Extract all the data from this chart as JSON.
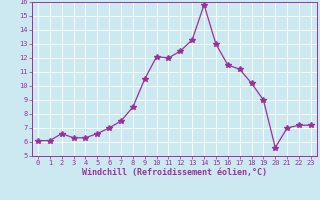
{
  "xlabel": "Windchill (Refroidissement éolien,°C)",
  "x": [
    0,
    1,
    2,
    3,
    4,
    5,
    6,
    7,
    8,
    9,
    10,
    11,
    12,
    13,
    14,
    15,
    16,
    17,
    18,
    19,
    20,
    21,
    22,
    23
  ],
  "y": [
    6.1,
    6.1,
    6.6,
    6.3,
    6.3,
    6.6,
    7.0,
    7.5,
    8.5,
    10.5,
    12.1,
    12.0,
    12.5,
    13.3,
    15.8,
    13.0,
    11.5,
    11.2,
    10.2,
    9.0,
    5.6,
    7.0,
    7.2,
    7.2
  ],
  "line_color": "#993399",
  "marker": "*",
  "marker_size": 4,
  "line_width": 0.9,
  "background_color": "#cce8f0",
  "grid_color": "#ffffff",
  "ylim": [
    5,
    16
  ],
  "xlim_min": -0.5,
  "xlim_max": 23.5,
  "yticks": [
    5,
    6,
    7,
    8,
    9,
    10,
    11,
    12,
    13,
    14,
    15,
    16
  ],
  "xticks": [
    0,
    1,
    2,
    3,
    4,
    5,
    6,
    7,
    8,
    9,
    10,
    11,
    12,
    13,
    14,
    15,
    16,
    17,
    18,
    19,
    20,
    21,
    22,
    23
  ],
  "tick_label_color": "#993399",
  "tick_label_size": 5.0,
  "xlabel_fontsize": 6.0,
  "xlabel_color": "#993399",
  "spine_color": "#993399"
}
